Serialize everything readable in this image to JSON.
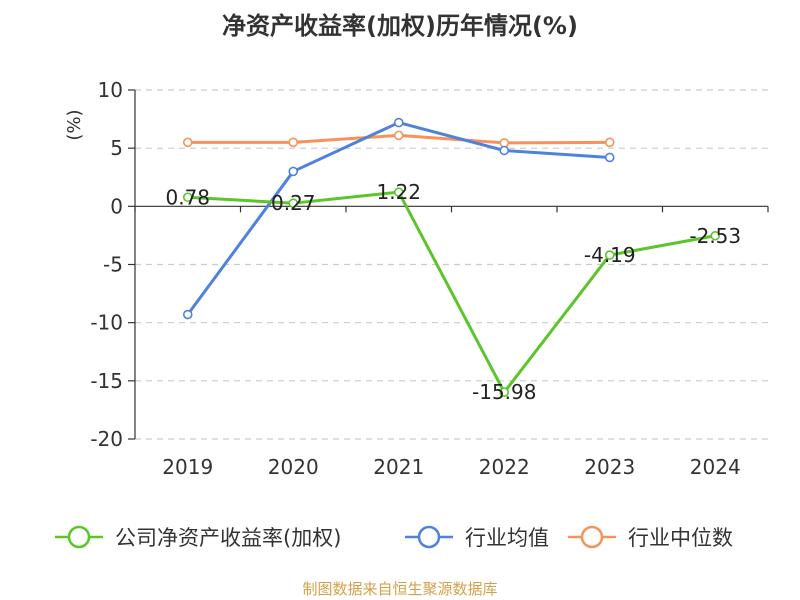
{
  "chart_data": {
    "type": "line",
    "title": "净资产收益率(加权)历年情况(%)",
    "ylabel": "(%)",
    "categories": [
      "2019",
      "2020",
      "2021",
      "2022",
      "2023",
      "2024"
    ],
    "ylim": [
      -20,
      10
    ],
    "yticks": [
      10,
      5,
      0,
      -5,
      -10,
      -15,
      -20
    ],
    "grid": true,
    "legend_position": "bottom",
    "series": [
      {
        "name": "公司净资产收益率(加权)",
        "color": "#5bc52b",
        "values": [
          0.78,
          0.27,
          1.22,
          -15.98,
          -4.19,
          -2.53
        ],
        "labels": [
          "0.78",
          "0.27",
          "1.22",
          "-15.98",
          "-4.19",
          "-2.53"
        ]
      },
      {
        "name": "行业均值",
        "color": "#4f82dc",
        "values": [
          -9.3,
          3.0,
          7.2,
          4.8,
          4.2,
          null
        ]
      },
      {
        "name": "行业中位数",
        "color": "#f6925b",
        "values": [
          5.5,
          5.5,
          6.1,
          5.45,
          5.5,
          null
        ]
      }
    ]
  },
  "source": "制图数据来自恒生聚源数据库"
}
